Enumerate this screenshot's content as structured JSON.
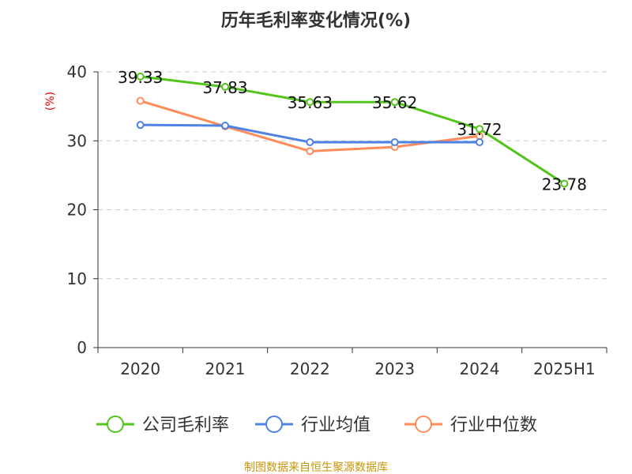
{
  "chart_data": {
    "type": "line",
    "title": "历年毛利率变化情况(%)",
    "ylabel": "(%)",
    "categories": [
      "2020",
      "2021",
      "2022",
      "2023",
      "2024",
      "2025H1"
    ],
    "ylim": [
      0,
      40
    ],
    "yticks": [
      "0",
      "10",
      "20",
      "30",
      "40"
    ],
    "grid": true,
    "legend_position": "bottom",
    "series": [
      {
        "name": "公司毛利率",
        "color": "#52c41a",
        "values": [
          39.33,
          37.83,
          35.63,
          35.62,
          31.72,
          23.78
        ],
        "labels": [
          "39.33",
          "37.83",
          "35.63",
          "35.62",
          "31.72",
          "23.78"
        ]
      },
      {
        "name": "行业均值",
        "color": "#4e82e4",
        "values": [
          32.3,
          32.2,
          29.8,
          29.8,
          29.8,
          null
        ]
      },
      {
        "name": "行业中位数",
        "color": "#ff8c5a",
        "values": [
          35.8,
          32.1,
          28.5,
          29.1,
          30.7,
          null
        ]
      }
    ]
  },
  "source": "制图数据来自恒生聚源数据库"
}
